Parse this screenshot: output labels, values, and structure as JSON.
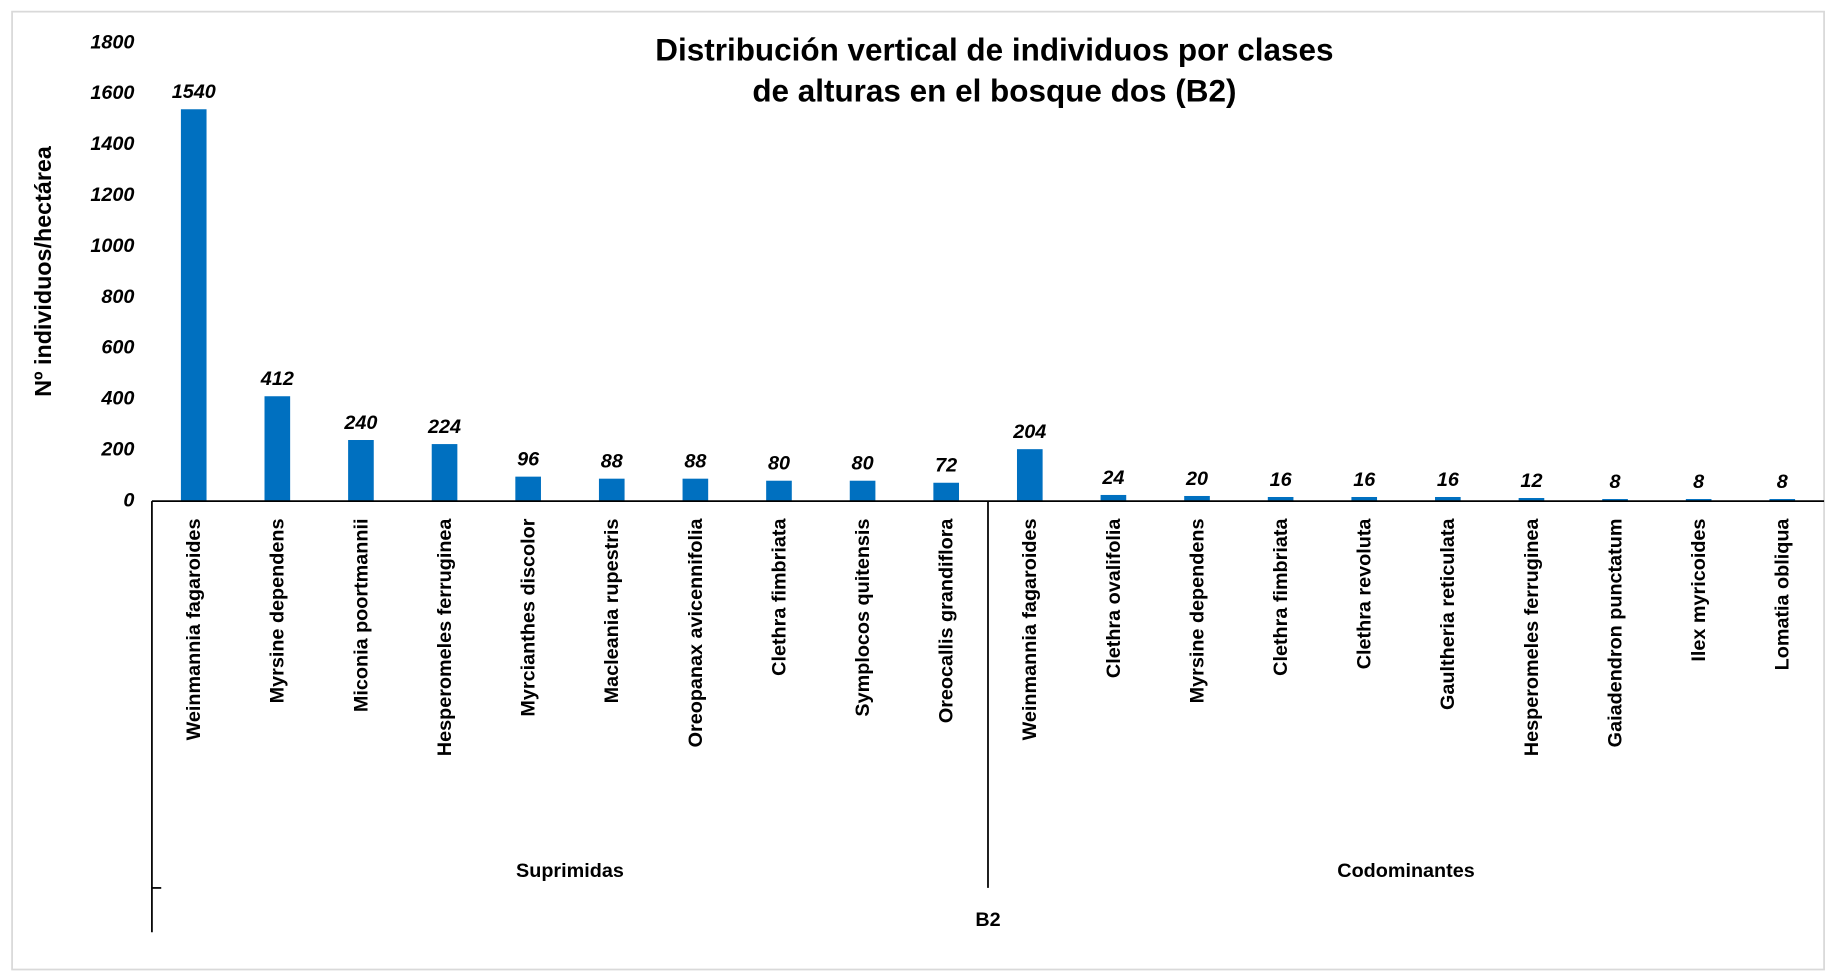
{
  "chart_data": {
    "type": "bar",
    "title": [
      "Distribución vertical  de individuos por clases",
      "de alturas en el bosque dos (B2)"
    ],
    "ylabel": "Nº individuos/hectárea",
    "categories": [
      "Weinmannia fagaroides",
      "Myrsine dependens",
      "Miconia poortmannii",
      "Hesperomeles ferruginea",
      "Myrcianthes discolor",
      "Macleania rupestris",
      "Oreopanax avicennifolia",
      "Clethra fimbriata",
      "Symplocos quitensis",
      "Oreocallis grandiflora",
      "Weinmannia fagaroides",
      "Clethra ovalifolia",
      "Myrsine dependens",
      "Clethra fimbriata",
      "Clethra revoluta",
      "Gaultheria reticulata",
      "Hesperomeles ferruginea",
      "Gaiadendron punctatum",
      "Ilex myricoides",
      "Lomatia obliqua"
    ],
    "values": [
      1540,
      412,
      240,
      224,
      96,
      88,
      88,
      80,
      80,
      72,
      204,
      24,
      20,
      16,
      16,
      16,
      12,
      8,
      8,
      8
    ],
    "group_labels": [
      "Suprimidas",
      "Codominantes"
    ],
    "outer_label": "B2",
    "color": "#0070c0",
    "ylim": [
      0,
      1800
    ],
    "yticks": [
      0,
      200,
      400,
      600,
      800,
      1000,
      1200,
      1400,
      1600,
      1800
    ],
    "grid": false
  }
}
